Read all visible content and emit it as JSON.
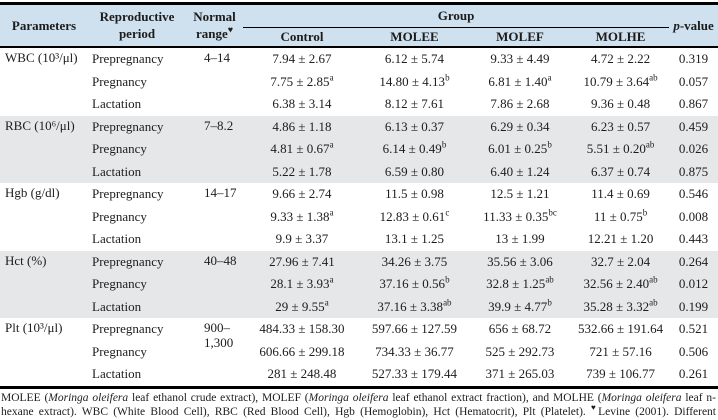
{
  "table": {
    "headers": {
      "parameters": "Parameters",
      "reproductive_period": "Reproductive period",
      "normal_range": "Normal range",
      "normal_range_marker": "♥",
      "group": "Group",
      "group_columns": [
        "Control",
        "MOLEE",
        "MOLEF",
        "MOLHE"
      ],
      "p_italic": "p",
      "p_rest": "-value"
    },
    "sections": [
      {
        "parameter": "WBC (10³/μl)",
        "normal_range": "4–14",
        "rows": [
          {
            "period": "Prepregnancy",
            "values": [
              "7.94 ± 2.67",
              "6.12 ± 5.74",
              "9.33 ± 4.49",
              "4.72 ± 2.22"
            ],
            "sups": [
              "",
              "",
              "",
              ""
            ],
            "p": "0.319"
          },
          {
            "period": "Pregnancy",
            "values": [
              "7.75 ± 2.85",
              "14.80 ± 4.13",
              "6.81 ± 1.40",
              "10.79 ± 3.64"
            ],
            "sups": [
              "a",
              "b",
              "a",
              "ab"
            ],
            "p": "0.057"
          },
          {
            "period": "Lactation",
            "values": [
              "6.38 ± 3.14",
              "8.12 ± 7.61",
              "7.86 ± 2.68",
              "9.36 ± 0.48"
            ],
            "sups": [
              "",
              "",
              "",
              ""
            ],
            "p": "0.867"
          }
        ]
      },
      {
        "parameter": "RBC (10⁶/μl)",
        "normal_range": "7–8.2",
        "rows": [
          {
            "period": "Prepregnancy",
            "values": [
              "4.86 ± 1.18",
              "6.13 ± 0.37",
              "6.29 ± 0.34",
              "6.23 ± 0.57"
            ],
            "sups": [
              "",
              "",
              "",
              ""
            ],
            "p": "0.459"
          },
          {
            "period": "Pregnancy",
            "values": [
              "4.81 ± 0.67",
              "6.14 ± 0.49",
              "6.01 ± 0.25",
              "5.51 ± 0.20"
            ],
            "sups": [
              "a",
              "b",
              "b",
              "ab"
            ],
            "p": "0.026"
          },
          {
            "period": "Lactation",
            "values": [
              "5.22 ± 1.78",
              "6.59 ± 0.80",
              "6.40 ± 1.24",
              "6.37 ± 0.74"
            ],
            "sups": [
              "",
              "",
              "",
              ""
            ],
            "p": "0.875"
          }
        ]
      },
      {
        "parameter": "Hgb (g/dl)",
        "normal_range": "14–17",
        "rows": [
          {
            "period": "Prepregnancy",
            "values": [
              "9.66 ± 2.74",
              "11.5 ± 0.98",
              "12.5 ± 1.21",
              "11.4 ± 0.69"
            ],
            "sups": [
              "",
              "",
              "",
              ""
            ],
            "p": "0.546"
          },
          {
            "period": "Pregnancy",
            "values": [
              "9.33 ± 1.38",
              "12.83 ± 0.61",
              "11.33 ± 0.35",
              "11 ± 0.75"
            ],
            "sups": [
              "a",
              "c",
              "bc",
              "b"
            ],
            "p": "0.008"
          },
          {
            "period": "Lactation",
            "values": [
              "9.9 ± 3.37",
              "13.1 ± 1.25",
              "13 ± 1.99",
              "12.21 ± 1.20"
            ],
            "sups": [
              "",
              "",
              "",
              ""
            ],
            "p": "0.443"
          }
        ]
      },
      {
        "parameter": "Hct (%)",
        "normal_range": "40–48",
        "rows": [
          {
            "period": "Prepregnancy",
            "values": [
              "27.96 ± 7.41",
              "34.26 ± 3.75",
              "35.56 ± 3.06",
              "32.7 ± 2.04"
            ],
            "sups": [
              "",
              "",
              "",
              ""
            ],
            "p": "0.264"
          },
          {
            "period": "Pregnancy",
            "values": [
              "28.1 ± 3.93",
              "37.16 ± 0.56",
              "32.8 ± 1.25",
              "32.56 ± 2.40"
            ],
            "sups": [
              "a",
              "b",
              "ab",
              "ab"
            ],
            "p": "0.012"
          },
          {
            "period": "Lactation",
            "values": [
              "29 ± 9.55",
              "37.16 ± 3.38",
              "39.9 ± 4.77",
              "35.28 ± 3.32"
            ],
            "sups": [
              "a",
              "ab",
              "b",
              "ab"
            ],
            "p": "0.199"
          }
        ]
      },
      {
        "parameter": "Plt (10³/μl)",
        "normal_range": "900–1,300",
        "rows": [
          {
            "period": "Prepregnancy",
            "values": [
              "484.33 ± 158.30",
              "597.66 ± 127.59",
              "656 ± 68.72",
              "532.66 ± 191.64"
            ],
            "sups": [
              "",
              "",
              "",
              ""
            ],
            "p": "0.521"
          },
          {
            "period": "Pregnancy",
            "values": [
              "606.66 ± 299.18",
              "734.33 ± 36.77",
              "525 ± 292.73",
              "721 ± 57.16"
            ],
            "sups": [
              "",
              "",
              "",
              ""
            ],
            "p": "0.506"
          },
          {
            "period": "Lactation",
            "values": [
              "281 ± 248.48",
              "527.33 ± 179.44",
              "371 ± 265.03",
              "739 ± 106.77"
            ],
            "sups": [
              "",
              "",
              "",
              ""
            ],
            "p": "0.261"
          }
        ]
      }
    ]
  },
  "footnote": {
    "segments": [
      {
        "t": "MOLEE (",
        "i": false
      },
      {
        "t": "Moringa oleifera",
        "i": true
      },
      {
        "t": " leaf ethanol crude extract), MOLEF (",
        "i": false
      },
      {
        "t": "Moringa oleifera",
        "i": true
      },
      {
        "t": " leaf ethanol extract fraction), and MOLHE (",
        "i": false
      },
      {
        "t": "Moringa oleifera",
        "i": true
      },
      {
        "t": " leaf n-hexane extract). WBC (White Blood Cell), RBC (Red Blood Cell), Hgb (Hemoglobin), Hct (Hematocrit), Plt (Platelet). ",
        "i": false
      },
      {
        "t": "♥",
        "i": false,
        "sup": true
      },
      {
        "t": "Levine (2001). Different superscript letters on the same row highlight significant differences between groups (",
        "i": false
      },
      {
        "t": "p",
        "i": true
      },
      {
        "t": " < 0.05).",
        "i": false
      }
    ]
  },
  "colors": {
    "header_bg": "#cfe1ee",
    "stripe_bg": "#e6e7e9",
    "border": "#000000"
  }
}
